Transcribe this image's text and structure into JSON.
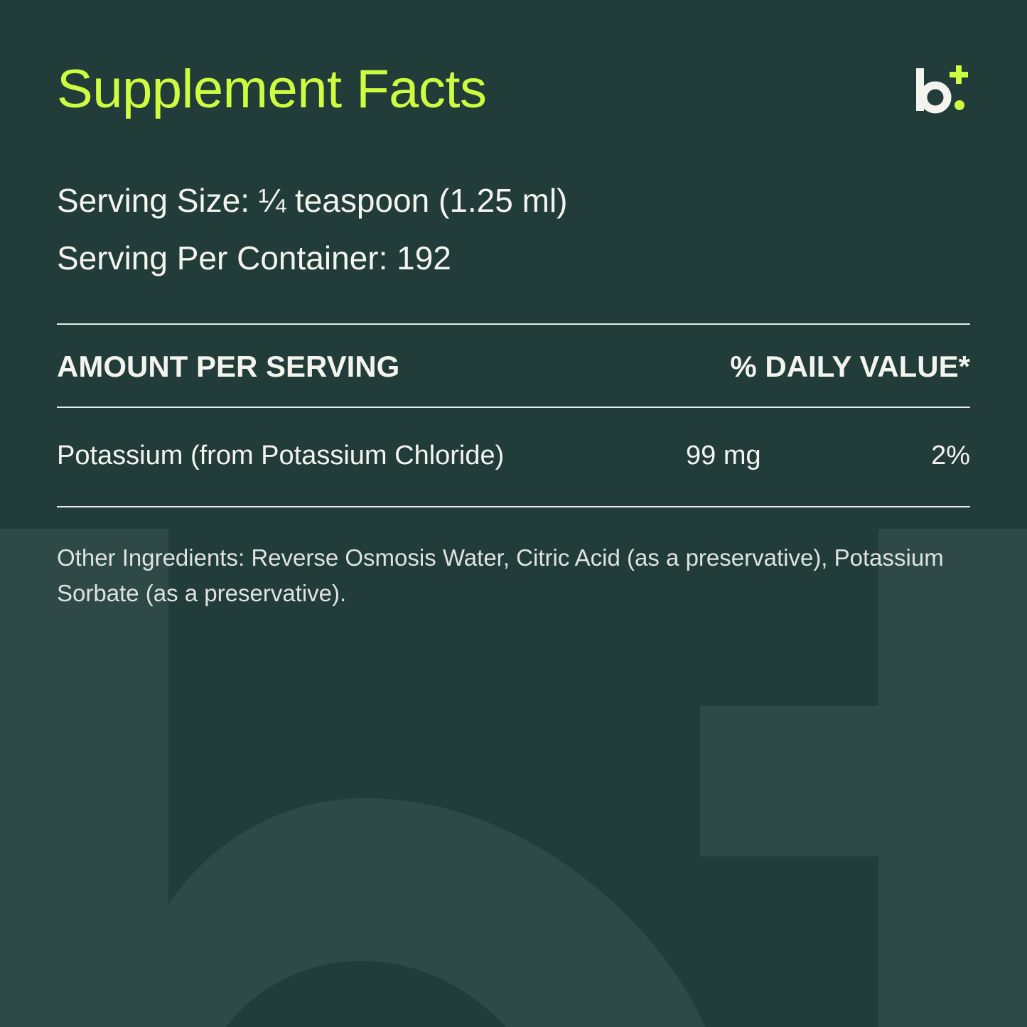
{
  "title": "Supplement Facts",
  "logo": {
    "text": "b+",
    "icon": "brand-logo-icon"
  },
  "serving_size": "Serving Size: ¼ teaspoon (1.25 ml)",
  "servings_per_container": "Serving Per Container: 192",
  "table": {
    "header_amount": "AMOUNT PER SERVING",
    "header_dv": "% DAILY VALUE*",
    "rows": [
      {
        "name": "Potassium (from Potassium Chloride)",
        "amount": "99 mg",
        "dv": "2%"
      }
    ]
  },
  "other_ingredients": "Other Ingredients: Reverse Osmosis Water, Citric Acid (as a preservative), Potassium Sorbate (as a preservative).",
  "colors": {
    "background": "#223c39",
    "accent": "#cdfc41",
    "watermark": "#2e4946"
  }
}
